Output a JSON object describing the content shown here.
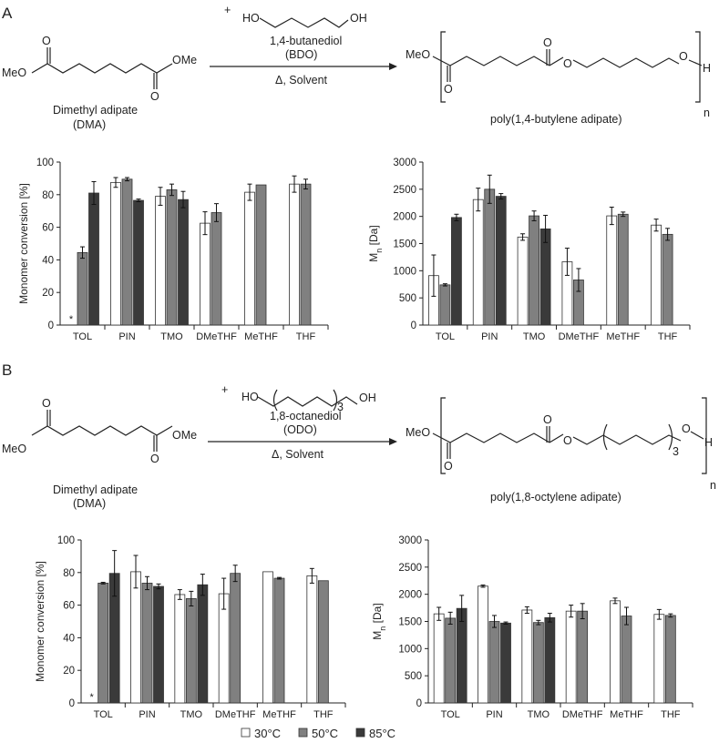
{
  "panels": {
    "a": {
      "label": "A",
      "reactant": {
        "name": "Dimethyl adipate",
        "abbr": "(DMA)",
        "meo": "MeO",
        "ome": "OMe",
        "o": "O"
      },
      "reagent": {
        "plus": "+",
        "name": "1,4-butanediol",
        "abbr": "(BDO)",
        "ho": "HO",
        "oh": "OH"
      },
      "conditions": "Δ, Solvent",
      "product": {
        "name": "poly(1,4-butylene adipate)",
        "meo": "MeO",
        "o": "O",
        "h": "H",
        "n": "n"
      }
    },
    "b": {
      "label": "B",
      "reactant": {
        "name": "Dimethyl adipate",
        "abbr": "(DMA)",
        "meo": "MeO",
        "ome": "OMe",
        "o": "O"
      },
      "reagent": {
        "plus": "+",
        "name": "1,8-octanediol",
        "abbr": "(ODO)",
        "ho": "HO",
        "oh": "OH",
        "sub": "3"
      },
      "conditions": "Δ, Solvent",
      "product": {
        "name": "poly(1,8-octylene adipate)",
        "meo": "MeO",
        "o": "O",
        "h": "H",
        "n": "n",
        "sub": "3"
      }
    }
  },
  "colors": {
    "s30": "#ffffff",
    "s50": "#808080",
    "s85": "#3a3a3a"
  },
  "legend": {
    "items": [
      "30°C",
      "50°C",
      "85°C"
    ]
  },
  "chart_data": [
    {
      "type": "bar",
      "panel": "A",
      "categories": [
        "TOL",
        "PIN",
        "TMO",
        "DMeTHF",
        "MeTHF",
        "THF"
      ],
      "ylabel": "Monomer conversion [%]",
      "ylim": [
        0,
        100
      ],
      "yticks": [
        0,
        20,
        40,
        60,
        80,
        100
      ],
      "annotation": {
        "text": "*",
        "category": "TOL"
      },
      "series": [
        {
          "name": "30°C",
          "values": [
            null,
            87.5,
            79,
            62.5,
            81.5,
            86.5
          ],
          "errors": [
            null,
            3,
            5.5,
            7,
            5,
            5
          ]
        },
        {
          "name": "50°C",
          "values": [
            44.5,
            89.5,
            83,
            69,
            86,
            86.5
          ],
          "errors": [
            3.5,
            1,
            3.5,
            5.5,
            null,
            3
          ]
        },
        {
          "name": "85°C",
          "values": [
            81,
            76.5,
            77,
            null,
            null,
            null
          ],
          "errors": [
            7,
            0.8,
            5,
            null,
            null,
            null
          ]
        }
      ]
    },
    {
      "type": "bar",
      "panel": "A",
      "categories": [
        "TOL",
        "PIN",
        "TMO",
        "DMeTHF",
        "MeTHF",
        "THF"
      ],
      "ylabel": "Mn [Da]",
      "ylabel_main": "M",
      "ylabel_sub": "n",
      "ylabel_rest": " [Da]",
      "ylim": [
        0,
        3000
      ],
      "yticks": [
        0,
        500,
        1000,
        1500,
        2000,
        2500,
        3000
      ],
      "series": [
        {
          "name": "30°C",
          "values": [
            910,
            2310,
            1620,
            1165,
            2010,
            1840
          ],
          "errors": [
            380,
            210,
            60,
            250,
            160,
            110
          ]
        },
        {
          "name": "50°C",
          "values": [
            740,
            2500,
            2010,
            830,
            2040,
            1670
          ],
          "errors": [
            20,
            260,
            90,
            210,
            40,
            110
          ]
        },
        {
          "name": "85°C",
          "values": [
            1980,
            2370,
            1770,
            null,
            null,
            null
          ],
          "errors": [
            60,
            50,
            250,
            null,
            null,
            null
          ]
        }
      ]
    },
    {
      "type": "bar",
      "panel": "B",
      "categories": [
        "TOL",
        "PIN",
        "TMO",
        "DMeTHF",
        "MeTHF",
        "THF"
      ],
      "ylabel": "Monomer conversion [%]",
      "ylim": [
        0,
        100
      ],
      "yticks": [
        0,
        20,
        40,
        60,
        80,
        100
      ],
      "annotation": {
        "text": "*",
        "category": "TOL"
      },
      "series": [
        {
          "name": "30°C",
          "values": [
            null,
            80.5,
            66.5,
            67,
            80.5,
            78
          ],
          "errors": [
            null,
            10,
            3,
            9.5,
            null,
            4.5
          ]
        },
        {
          "name": "50°C",
          "values": [
            73.5,
            73.5,
            64,
            79.5,
            76.5,
            75
          ],
          "errors": [
            0.5,
            4,
            4.5,
            5,
            0.5,
            null
          ]
        },
        {
          "name": "85°C",
          "values": [
            79.5,
            71.5,
            72.5,
            null,
            null,
            null
          ],
          "errors": [
            14,
            1.5,
            6.5,
            null,
            null,
            null
          ]
        }
      ]
    },
    {
      "type": "bar",
      "panel": "B",
      "categories": [
        "TOL",
        "PIN",
        "TMO",
        "DMeTHF",
        "MeTHF",
        "THF"
      ],
      "ylabel": "Mn [Da]",
      "ylabel_main": "M",
      "ylabel_sub": "n",
      "ylabel_rest": " [Da]",
      "ylim": [
        0,
        3000
      ],
      "yticks": [
        0,
        500,
        1000,
        1500,
        2000,
        2500,
        3000
      ],
      "series": [
        {
          "name": "30°C",
          "values": [
            1640,
            2150,
            1710,
            1690,
            1880,
            1630
          ],
          "errors": [
            120,
            20,
            60,
            110,
            50,
            90
          ]
        },
        {
          "name": "50°C",
          "values": [
            1560,
            1500,
            1480,
            1690,
            1600,
            1610
          ],
          "errors": [
            110,
            110,
            40,
            140,
            160,
            30
          ]
        },
        {
          "name": "85°C",
          "values": [
            1740,
            1470,
            1570,
            null,
            null,
            null
          ],
          "errors": [
            240,
            20,
            80,
            null,
            null,
            null
          ]
        }
      ]
    }
  ]
}
